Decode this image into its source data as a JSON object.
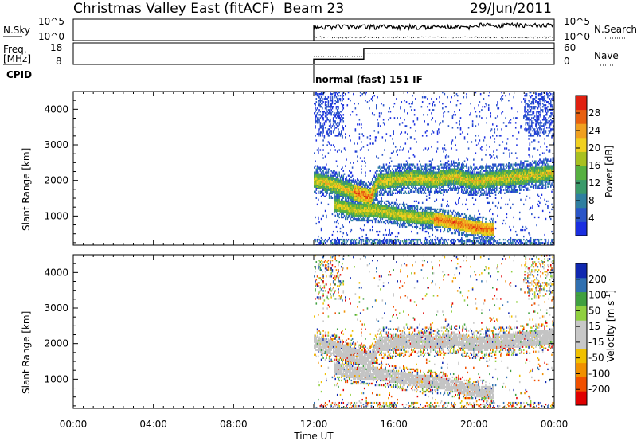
{
  "header": {
    "station": "Christmas Valley East (fitACF)",
    "beam": "Beam 23",
    "date": "29/Jun/2011"
  },
  "panels": {
    "nsky": {
      "label": "N.Sky",
      "ticks": [
        "10^5",
        "10^0"
      ],
      "right_label": "N.Search",
      "right_ticks": [
        "10^5",
        "10^0"
      ]
    },
    "freq": {
      "label_line1": "Freq.",
      "label_line2": "[MHz]",
      "ticks": [
        "18",
        "8"
      ],
      "right_label": "Nave",
      "right_ticks": [
        "60",
        "0"
      ]
    },
    "cpid": {
      "label": "CPID",
      "mode_text": "normal (fast) 151 IF"
    }
  },
  "colors": {
    "power": [
      "#1a2ee0",
      "#2a55c8",
      "#2f7fa0",
      "#3a9a6a",
      "#56b040",
      "#a8c020",
      "#f0d020",
      "#f0a020",
      "#e86010",
      "#e02010"
    ],
    "velocity": [
      "#e00000",
      "#f05000",
      "#f09000",
      "#f0c000",
      "#c8c8c8",
      "#c8c8c8",
      "#90d040",
      "#40a040",
      "#3070b0",
      "#1028b0"
    ],
    "ground_scatter": "#c4c4c4"
  },
  "chart_data": [
    {
      "type": "heatmap",
      "title": "",
      "xlabel": "Time UT",
      "ylabel": "Slant Range [km]",
      "x_ticks": [
        "00:00",
        "04:00",
        "08:00",
        "12:00",
        "16:00",
        "20:00",
        "00:00"
      ],
      "y_ticks": [
        "1000",
        "2000",
        "3000",
        "4000"
      ],
      "xlim_hours": [
        0,
        24
      ],
      "ylim_km": [
        180,
        4500
      ],
      "colorbar": {
        "label": "Power [dB]",
        "ticks": [
          "28",
          "24",
          "20",
          "16",
          "12",
          "8",
          "4"
        ],
        "range": [
          0,
          30
        ]
      },
      "data_start_hour": 12.0,
      "features": [
        {
          "name": "upper echo band",
          "points": [
            [
              12.0,
              2000
            ],
            [
              13.0,
              1850
            ],
            [
              14.0,
              1650
            ],
            [
              14.8,
              1500
            ],
            [
              15.2,
              1950
            ],
            [
              16.0,
              2000
            ],
            [
              17.0,
              2050
            ],
            [
              18.0,
              2000
            ],
            [
              19.0,
              2100
            ],
            [
              20.0,
              1950
            ],
            [
              21.5,
              2050
            ],
            [
              22.5,
              2100
            ],
            [
              24.0,
              2200
            ]
          ]
        },
        {
          "name": "lower echo band",
          "points": [
            [
              13.0,
              1300
            ],
            [
              14.0,
              1150
            ],
            [
              15.0,
              1150
            ],
            [
              16.0,
              1050
            ],
            [
              17.0,
              950
            ],
            [
              18.0,
              900
            ],
            [
              19.0,
              800
            ],
            [
              20.0,
              650
            ],
            [
              21.0,
              600
            ]
          ]
        }
      ]
    },
    {
      "type": "heatmap",
      "title": "",
      "xlabel": "Time UT",
      "ylabel": "Slant Range [km]",
      "x_ticks": [
        "00:00",
        "04:00",
        "08:00",
        "12:00",
        "16:00",
        "20:00",
        "00:00"
      ],
      "y_ticks": [
        "1000",
        "2000",
        "3000",
        "4000"
      ],
      "xlim_hours": [
        0,
        24
      ],
      "ylim_km": [
        180,
        4500
      ],
      "colorbar": {
        "label": "Velocity [m s^-1]",
        "ticks": [
          "200",
          "100",
          "50",
          "15",
          "-15",
          "-50",
          "-100",
          "-200"
        ],
        "range": [
          -250,
          250
        ]
      },
      "data_start_hour": 12.0
    }
  ],
  "summary_lines": {
    "freq_mhz": [
      [
        12.0,
        10.5
      ],
      [
        14.5,
        10.5
      ],
      [
        14.5,
        15.5
      ],
      [
        24.0,
        15.5
      ]
    ],
    "nave": [
      [
        12.0,
        22
      ],
      [
        14.5,
        22
      ],
      [
        14.5,
        32
      ],
      [
        24.0,
        32
      ]
    ]
  }
}
